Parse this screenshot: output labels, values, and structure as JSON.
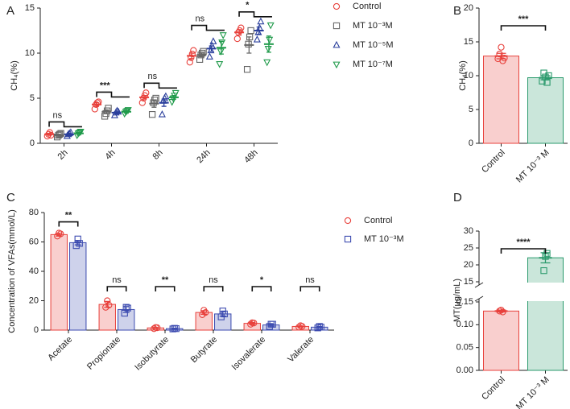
{
  "chart_data": [
    {
      "type": "dot",
      "panel": "A",
      "ylabel": "CH₄(%)",
      "categories": [
        "2h",
        "4h",
        "8h",
        "24h",
        "48h"
      ],
      "ylim": [
        0,
        15
      ],
      "yticks": [
        0,
        5,
        10,
        15
      ],
      "annotations": [
        "ns",
        "***",
        "ns",
        "ns",
        "*"
      ],
      "series": [
        {
          "name": "Control",
          "color": "#e8413c",
          "marker": "circle",
          "values": [
            1.0,
            4.3,
            5.1,
            9.7,
            12.3
          ],
          "errors": [
            0.1,
            0.2,
            0.2,
            0.3,
            0.3
          ],
          "points": [
            [
              0.8,
              1.0,
              1.2,
              0.9
            ],
            [
              3.8,
              4.3,
              4.5,
              4.6
            ],
            [
              4.5,
              5.0,
              5.3,
              5.6
            ],
            [
              9.0,
              9.5,
              9.9,
              10.3
            ],
            [
              11.6,
              12.3,
              12.5,
              12.8
            ]
          ]
        },
        {
          "name": "MT 10⁻³M",
          "color": "#666666",
          "marker": "square",
          "values": [
            0.9,
            3.5,
            4.4,
            9.8,
            10.9
          ],
          "errors": [
            0.1,
            0.2,
            0.4,
            0.2,
            0.9
          ],
          "points": [
            [
              0.7,
              0.9,
              1.0,
              1.1
            ],
            [
              3.0,
              3.3,
              3.6,
              3.9
            ],
            [
              3.2,
              4.5,
              4.8,
              5.0
            ],
            [
              9.3,
              9.8,
              10.0,
              10.2
            ],
            [
              8.2,
              11.0,
              11.8,
              12.5
            ]
          ]
        },
        {
          "name": "MT 10⁻⁵M",
          "color": "#2a3f9c",
          "marker": "triangle",
          "values": [
            1.0,
            3.4,
            4.5,
            10.5,
            12.5
          ],
          "errors": [
            0.1,
            0.1,
            0.4,
            0.3,
            0.4
          ],
          "points": [
            [
              0.8,
              1.0,
              1.1,
              1.2
            ],
            [
              3.1,
              3.4,
              3.6,
              3.5
            ],
            [
              3.2,
              4.7,
              5.0,
              5.2
            ],
            [
              9.6,
              10.3,
              10.8,
              11.3
            ],
            [
              11.5,
              12.3,
              12.8,
              13.5
            ]
          ]
        },
        {
          "name": "MT 10⁻⁷M",
          "color": "#1f9a4a",
          "marker": "triangle-down",
          "values": [
            1.1,
            3.5,
            5.1,
            10.6,
            11.0
          ],
          "errors": [
            0.1,
            0.1,
            0.2,
            0.7,
            0.9
          ],
          "points": [
            [
              0.9,
              1.1,
              1.2,
              1.3
            ],
            [
              3.3,
              3.5,
              3.6,
              3.7
            ],
            [
              4.6,
              5.0,
              5.3,
              5.6
            ],
            [
              8.8,
              10.2,
              11.2,
              12.0
            ],
            [
              9.0,
              10.5,
              11.5,
              13.1
            ]
          ]
        }
      ]
    },
    {
      "type": "bar",
      "panel": "B",
      "ylabel": "CH₄(%)",
      "categories": [
        "Control",
        "MT 10⁻³ M"
      ],
      "values": [
        12.9,
        9.7
      ],
      "errors": [
        0.4,
        0.3
      ],
      "colors": [
        "#e8413c",
        "#2a9a6c"
      ],
      "markers": [
        "circle",
        "square"
      ],
      "points": [
        [
          12.5,
          13.2,
          14.2,
          12.2,
          12.6
        ],
        [
          9.2,
          10.4,
          9.8,
          9.0,
          10.0
        ]
      ],
      "ylim": [
        0,
        20
      ],
      "yticks": [
        0,
        5,
        10,
        15,
        20
      ],
      "annotation": "***"
    },
    {
      "type": "bar",
      "panel": "C",
      "ylabel": "Concentration of VFAs(mmol/L)",
      "categories": [
        "Acetate",
        "Propionate",
        "Isobutyrate",
        "Butyrate",
        "Isovalerate",
        "Valerate"
      ],
      "ylim": [
        0,
        80
      ],
      "yticks": [
        0,
        20,
        40,
        60,
        80
      ],
      "annotations": [
        "**",
        "ns",
        "**",
        "ns",
        "*",
        "ns"
      ],
      "series": [
        {
          "name": "Control",
          "color": "#e8413c",
          "marker": "circle",
          "values": [
            65,
            17.5,
            1.5,
            12,
            4.6,
            2.5
          ],
          "errors": [
            1,
            2,
            0.3,
            1.2,
            0.6,
            0.3
          ],
          "points": [
            [
              64,
              66,
              65.5
            ],
            [
              15.5,
              20,
              17
            ],
            [
              1,
              1.8,
              1.6
            ],
            [
              10.5,
              13.5,
              12
            ],
            [
              4,
              5,
              4.8
            ],
            [
              2,
              3,
              2.5
            ]
          ]
        },
        {
          "name": "MT 10⁻³M",
          "color": "#3c4bb0",
          "marker": "square",
          "values": [
            59.5,
            14,
            1,
            11,
            3.5,
            2
          ],
          "errors": [
            1.5,
            2,
            0.3,
            1.5,
            0.7,
            0.4
          ],
          "points": [
            [
              57.5,
              62,
              59
            ],
            [
              11.5,
              15.5,
              15
            ],
            [
              0.8,
              1.2,
              1
            ],
            [
              9,
              13,
              11
            ],
            [
              2.5,
              4,
              4
            ],
            [
              1.5,
              2.5,
              2
            ]
          ]
        }
      ]
    },
    {
      "type": "bar",
      "panel": "D",
      "ylabel": "MT(μg/mL)",
      "categories": [
        "Control",
        "MT 10⁻³ M"
      ],
      "values": [
        0.13,
        22.1
      ],
      "errors": [
        0.002,
        1.5
      ],
      "colors": [
        "#e8413c",
        "#2a9a6c"
      ],
      "markers": [
        "circle",
        "square"
      ],
      "points": [
        [
          0.13,
          0.132,
          0.128
        ],
        [
          18.3,
          22.5,
          23.4
        ]
      ],
      "axis_break": true,
      "segments": [
        {
          "ylim": [
            0,
            0.15
          ],
          "yticks": [
            {
              "value": 0,
              "label": "0.00"
            },
            0.05,
            {
              "value": 0.1,
              "label": "0.10"
            },
            0.15
          ]
        },
        {
          "ylim": [
            15,
            30
          ],
          "yticks": [
            15,
            20,
            25,
            30
          ]
        }
      ],
      "annotation": "****"
    }
  ]
}
